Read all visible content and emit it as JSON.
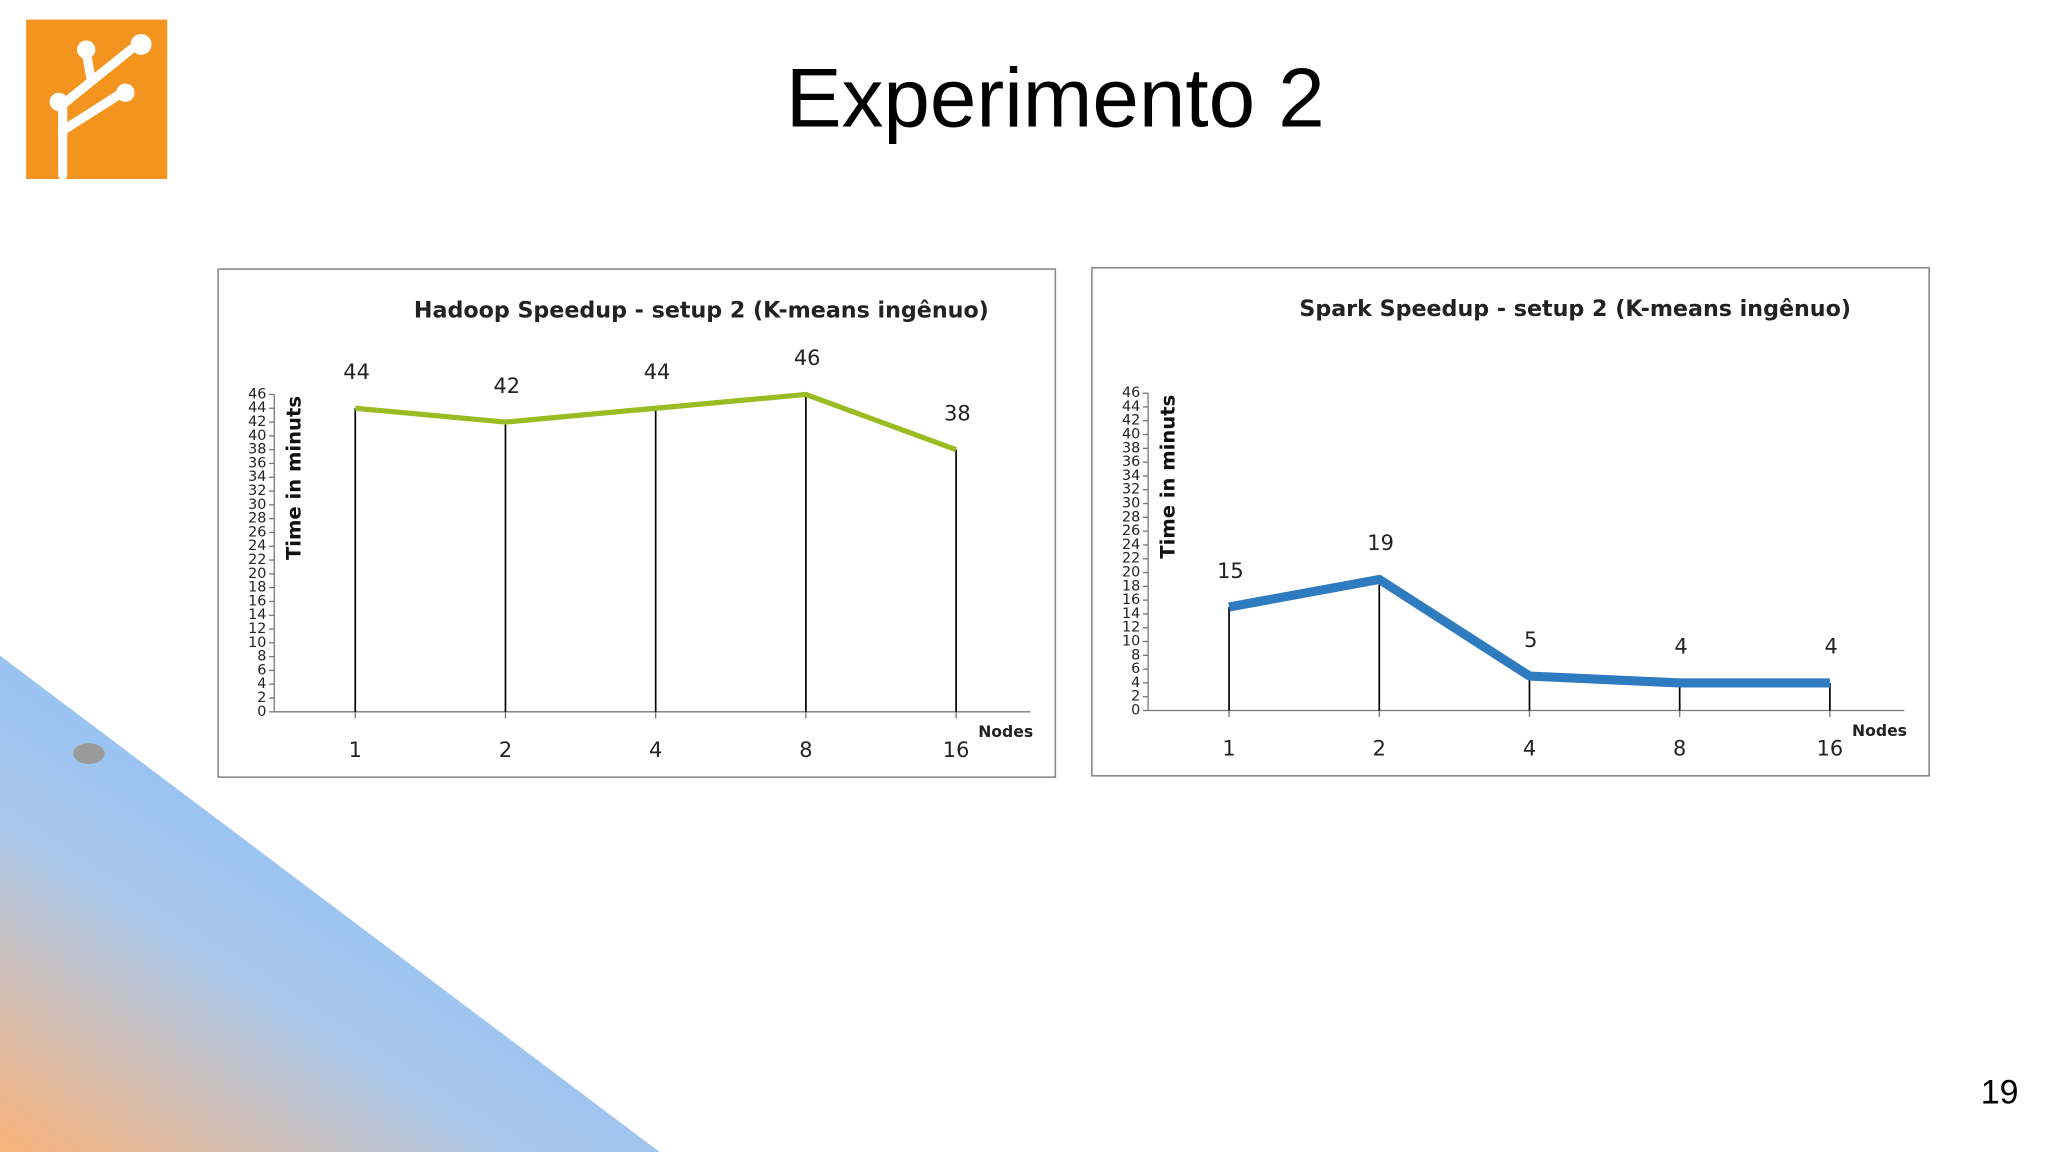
{
  "title": "Experimento 2",
  "page_number": "19",
  "chart_data": [
    {
      "type": "line",
      "title": "Hadoop Speedup - setup 2 (K-means ingênuo)",
      "y_label": "Time in minuts",
      "x_label": "Nodes",
      "categories": [
        "1",
        "2",
        "4",
        "8",
        "16"
      ],
      "series": [
        {
          "name": "Hadoop",
          "color": "#9bbb22",
          "values": [
            44,
            42,
            44,
            46,
            38
          ]
        }
      ],
      "ylim": [
        0,
        46
      ],
      "yticks": [
        0,
        2,
        4,
        6,
        8,
        10,
        12,
        14,
        16,
        18,
        20,
        22,
        24,
        26,
        28,
        30,
        32,
        34,
        36,
        38,
        40,
        42,
        44,
        46
      ],
      "drop_lines": true,
      "line_width": 4
    },
    {
      "type": "line",
      "title": "Spark Speedup - setup 2 (K-means ingênuo)",
      "y_label": "Time in minuts",
      "x_label": "Nodes",
      "categories": [
        "1",
        "2",
        "4",
        "8",
        "16"
      ],
      "series": [
        {
          "name": "Spark",
          "color": "#2e7bbf",
          "values": [
            15,
            19,
            5,
            4,
            4
          ]
        }
      ],
      "ylim": [
        0,
        46
      ],
      "yticks": [
        0,
        2,
        4,
        6,
        8,
        10,
        12,
        14,
        16,
        18,
        20,
        22,
        24,
        26,
        28,
        30,
        32,
        34,
        36,
        38,
        40,
        42,
        44,
        46
      ],
      "drop_lines": true,
      "line_width": 7
    }
  ]
}
